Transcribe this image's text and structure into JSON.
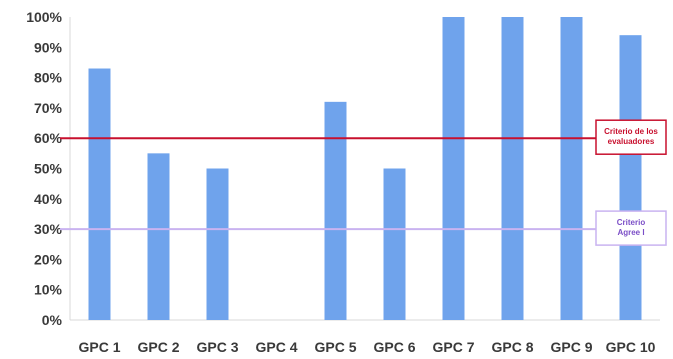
{
  "chart_data": {
    "type": "bar",
    "categories": [
      "GPC 1",
      "GPC 2",
      "GPC 3",
      "GPC 4",
      "GPC 5",
      "GPC 6",
      "GPC 7",
      "GPC 8",
      "GPC 9",
      "GPC 10"
    ],
    "values": [
      83,
      55,
      50,
      0,
      72,
      50,
      100,
      100,
      100,
      94
    ],
    "title": "",
    "xlabel": "",
    "ylabel": "",
    "ylim": [
      0,
      100
    ],
    "ytick_labels": [
      "0%",
      "10%",
      "20%",
      "30%",
      "40%",
      "50%",
      "60%",
      "70%",
      "80%",
      "90%",
      "100%"
    ],
    "grid": false,
    "bar_color": "#6fa3ec",
    "reference_lines": [
      {
        "value": 60,
        "color": "#c8102e",
        "label_lines": [
          "Criterio de los",
          "evaluadores"
        ]
      },
      {
        "value": 30,
        "color": "#c9b3f0",
        "label_lines": [
          "Criterio",
          "Agree I"
        ]
      }
    ]
  }
}
